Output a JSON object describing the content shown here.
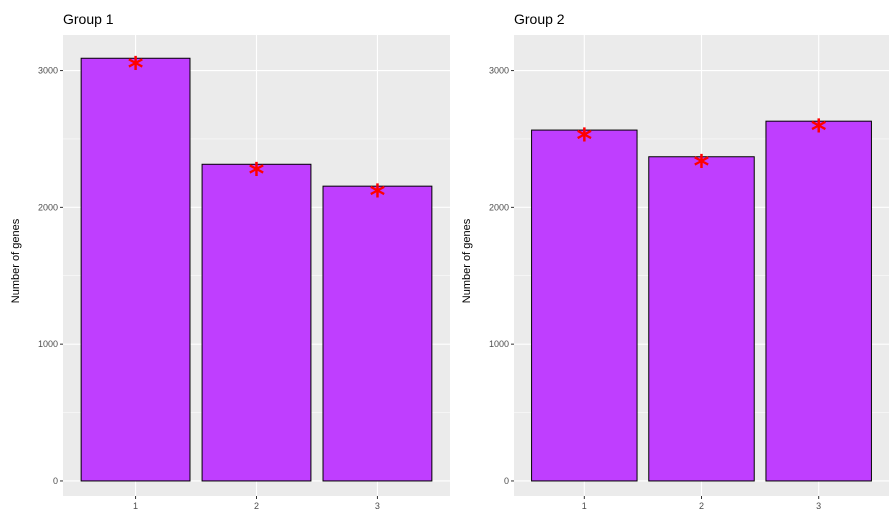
{
  "chart_data": [
    {
      "type": "bar",
      "title": "Group 1",
      "xlabel": "",
      "ylabel": "Number of genes",
      "categories": [
        "1",
        "2",
        "3"
      ],
      "values": [
        3090,
        2315,
        2155
      ],
      "annotations": [
        "*",
        "*",
        "*"
      ],
      "ylim": [
        -110,
        3260
      ],
      "yticks": [
        "0",
        "1000",
        "2000",
        "3000"
      ],
      "grid": true,
      "bar_color": "#bf3eff",
      "bar_outline": "#000000",
      "panel_background": "#ebebeb",
      "annotation_color": "#ff0000"
    },
    {
      "type": "bar",
      "title": "Group 2",
      "xlabel": "",
      "ylabel": "Number of genes",
      "categories": [
        "1",
        "2",
        "3"
      ],
      "values": [
        2565,
        2370,
        2630
      ],
      "annotations": [
        "*",
        "*",
        "*"
      ],
      "ylim": [
        -110,
        3260
      ],
      "yticks": [
        "0",
        "1000",
        "2000",
        "3000"
      ],
      "grid": true,
      "bar_color": "#bf3eff",
      "bar_outline": "#000000",
      "panel_background": "#ebebeb",
      "annotation_color": "#ff0000"
    }
  ]
}
